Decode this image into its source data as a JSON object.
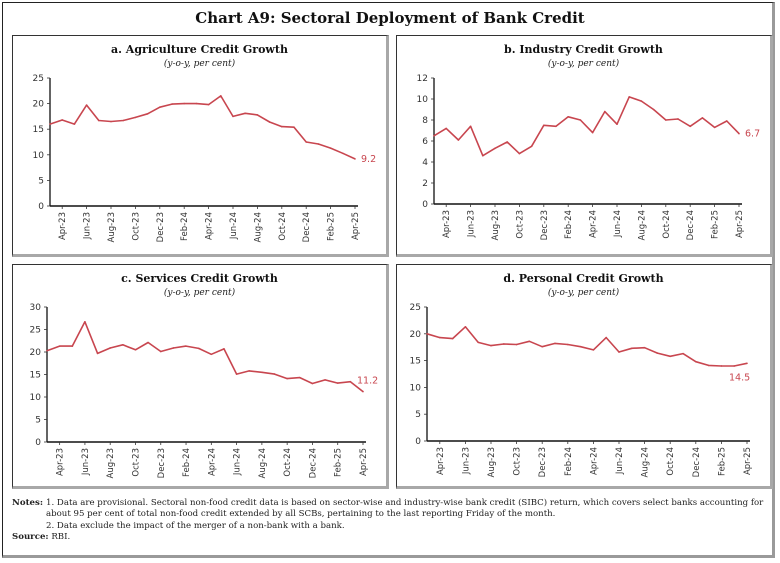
{
  "title": "Chart A9: Sectoral Deployment of Bank Credit",
  "notes_label": "Notes:",
  "notes": [
    "1. Data are provisional. Sectoral non-food credit data is based on sector-wise and industry-wise bank credit (SIBC) return, which covers select banks accounting for about 95 per cent of total non-food credit extended by all SCBs, pertaining to the last reporting Friday of the month.",
    "2. Data exclude the impact of the merger of a non-bank with a bank."
  ],
  "source_label": "Source:",
  "source": "RBI.",
  "line_color": "#c8464f",
  "chart_data": [
    {
      "type": "line",
      "title": "a. Agriculture Credit Growth",
      "subtitle": "(y-o-y, per cent)",
      "xlabel": "",
      "ylabel": "",
      "ylim": [
        0,
        25
      ],
      "yticks": [
        0,
        5,
        10,
        15,
        20,
        25
      ],
      "x": [
        "Mar-23",
        "Apr-23",
        "May-23",
        "Jun-23",
        "Jul-23",
        "Aug-23",
        "Sep-23",
        "Oct-23",
        "Nov-23",
        "Dec-23",
        "Jan-24",
        "Feb-24",
        "Mar-24",
        "Apr-24",
        "May-24",
        "Jun-24",
        "Jul-24",
        "Aug-24",
        "Sep-24",
        "Oct-24",
        "Nov-24",
        "Dec-24",
        "Jan-25",
        "Feb-25",
        "Mar-25",
        "Apr-25"
      ],
      "xtick_labels": [
        "Apr-23",
        "Jun-23",
        "Aug-23",
        "Oct-23",
        "Dec-23",
        "Feb-24",
        "Apr-24",
        "Jun-24",
        "Aug-24",
        "Oct-24",
        "Dec-24",
        "Feb-25",
        "Apr-25"
      ],
      "values": [
        16.0,
        16.8,
        16.0,
        19.7,
        16.7,
        16.5,
        16.7,
        17.3,
        18.0,
        19.3,
        19.9,
        20.0,
        20.0,
        19.8,
        21.5,
        17.5,
        18.1,
        17.8,
        16.4,
        15.5,
        15.4,
        12.5,
        12.1,
        11.3,
        10.3,
        9.2
      ],
      "end_label": "9.2",
      "grid": false
    },
    {
      "type": "line",
      "title": "b. Industry Credit Growth",
      "subtitle": "(y-o-y, per cent)",
      "xlabel": "",
      "ylabel": "",
      "ylim": [
        0,
        12
      ],
      "yticks": [
        0,
        2,
        4,
        6,
        8,
        10,
        12
      ],
      "x": [
        "Mar-23",
        "Apr-23",
        "May-23",
        "Jun-23",
        "Jul-23",
        "Aug-23",
        "Sep-23",
        "Oct-23",
        "Nov-23",
        "Dec-23",
        "Jan-24",
        "Feb-24",
        "Mar-24",
        "Apr-24",
        "May-24",
        "Jun-24",
        "Jul-24",
        "Aug-24",
        "Sep-24",
        "Oct-24",
        "Nov-24",
        "Dec-24",
        "Jan-25",
        "Feb-25",
        "Mar-25",
        "Apr-25"
      ],
      "xtick_labels": [
        "Apr-23",
        "Jun-23",
        "Aug-23",
        "Oct-23",
        "Dec-23",
        "Feb-24",
        "Apr-24",
        "Jun-24",
        "Aug-24",
        "Oct-24",
        "Dec-24",
        "Feb-25",
        "Apr-25"
      ],
      "values": [
        6.5,
        7.2,
        6.1,
        7.4,
        4.6,
        5.3,
        5.9,
        4.8,
        5.5,
        7.5,
        7.4,
        8.3,
        8.0,
        6.8,
        8.8,
        7.6,
        10.2,
        9.8,
        9.0,
        8.0,
        8.1,
        7.4,
        8.2,
        7.3,
        7.9,
        6.7
      ],
      "end_label": "6.7",
      "grid": false
    },
    {
      "type": "line",
      "title": "c. Services Credit Growth",
      "subtitle": "(y-o-y, per cent)",
      "xlabel": "",
      "ylabel": "",
      "ylim": [
        0,
        30
      ],
      "yticks": [
        0,
        5,
        10,
        15,
        20,
        25,
        30
      ],
      "x": [
        "Mar-23",
        "Apr-23",
        "May-23",
        "Jun-23",
        "Jul-23",
        "Aug-23",
        "Sep-23",
        "Oct-23",
        "Nov-23",
        "Dec-23",
        "Jan-24",
        "Feb-24",
        "Mar-24",
        "Apr-24",
        "May-24",
        "Jun-24",
        "Jul-24",
        "Aug-24",
        "Sep-24",
        "Oct-24",
        "Nov-24",
        "Dec-24",
        "Jan-25",
        "Feb-25",
        "Mar-25",
        "Apr-25"
      ],
      "xtick_labels": [
        "Apr-23",
        "Jun-23",
        "Aug-23",
        "Oct-23",
        "Dec-23",
        "Feb-24",
        "Apr-24",
        "Jun-24",
        "Aug-24",
        "Oct-24",
        "Dec-24",
        "Feb-25",
        "Apr-25"
      ],
      "values": [
        20.3,
        21.3,
        21.3,
        26.7,
        19.7,
        20.9,
        21.6,
        20.5,
        22.1,
        20.1,
        20.9,
        21.3,
        20.8,
        19.5,
        20.7,
        15.1,
        15.8,
        15.5,
        15.1,
        14.1,
        14.3,
        13.0,
        13.8,
        13.1,
        13.4,
        11.2
      ],
      "end_label": "11.2",
      "grid": false
    },
    {
      "type": "line",
      "title": "d. Personal Credit Growth",
      "subtitle": "(y-o-y, per cent)",
      "xlabel": "",
      "ylabel": "",
      "ylim": [
        0,
        25
      ],
      "yticks": [
        0,
        5,
        10,
        15,
        20,
        25
      ],
      "x": [
        "Mar-23",
        "Apr-23",
        "May-23",
        "Jun-23",
        "Jul-23",
        "Aug-23",
        "Sep-23",
        "Oct-23",
        "Nov-23",
        "Dec-23",
        "Jan-24",
        "Feb-24",
        "Mar-24",
        "Apr-24",
        "May-24",
        "Jun-24",
        "Jul-24",
        "Aug-24",
        "Sep-24",
        "Oct-24",
        "Nov-24",
        "Dec-24",
        "Jan-25",
        "Feb-25",
        "Mar-25",
        "Apr-25"
      ],
      "xtick_labels": [
        "Apr-23",
        "Jun-23",
        "Aug-23",
        "Oct-23",
        "Dec-23",
        "Feb-24",
        "Apr-24",
        "Jun-24",
        "Aug-24",
        "Oct-24",
        "Dec-24",
        "Feb-25",
        "Apr-25"
      ],
      "values": [
        20.0,
        19.3,
        19.1,
        21.3,
        18.4,
        17.8,
        18.1,
        18.0,
        18.6,
        17.6,
        18.2,
        18.0,
        17.6,
        17.0,
        19.3,
        16.6,
        17.3,
        17.4,
        16.4,
        15.8,
        16.3,
        14.8,
        14.1,
        14.0,
        14.0,
        14.5
      ],
      "end_label": "14.5",
      "grid": false
    }
  ]
}
